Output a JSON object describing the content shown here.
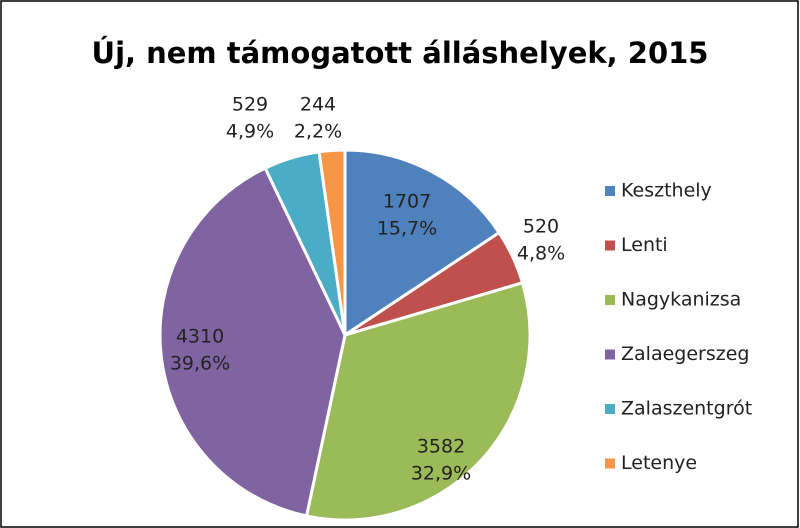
{
  "chart_data": {
    "type": "pie",
    "title": "Új, nem támogatott álláshelyek, 2015",
    "categories": [
      "Keszthely",
      "Lenti",
      "Nagykanizsa",
      "Zalaegerszeg",
      "Zalaszentgrót",
      "Letenye"
    ],
    "values": [
      1707,
      520,
      3582,
      4310,
      529,
      244
    ],
    "percent_labels": [
      "15,7%",
      "4,8%",
      "32,9%",
      "39,6%",
      "4,9%",
      "2,2%"
    ],
    "colors": [
      "#4f81bd",
      "#c0504d",
      "#9bbb59",
      "#8064a2",
      "#4bacc6",
      "#f79646"
    ],
    "legend": "right"
  }
}
